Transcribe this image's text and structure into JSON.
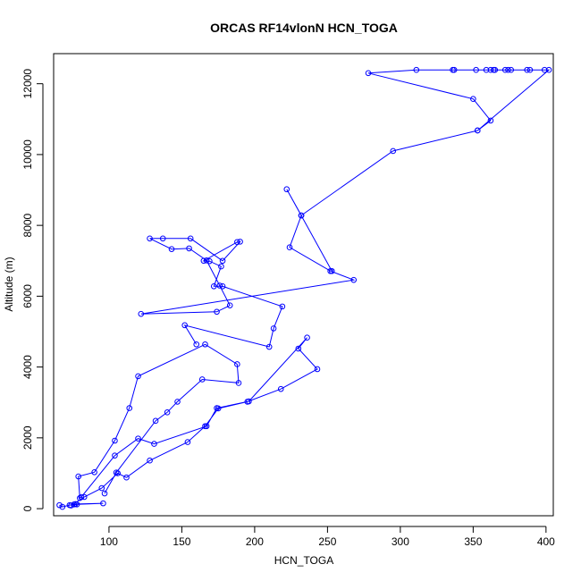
{
  "chart_data": {
    "type": "line",
    "title": "ORCAS RF14vlonN HCN_TOGA",
    "xlabel": "HCN_TOGA",
    "ylabel": "Altitude (m)",
    "xlim": [
      62,
      405
    ],
    "ylim": [
      -200,
      12850
    ],
    "xticks": [
      100,
      150,
      200,
      250,
      300,
      350,
      400
    ],
    "yticks": [
      0,
      2000,
      4000,
      6000,
      8000,
      10000,
      12000
    ],
    "grid": false,
    "legend": "none",
    "marker": "open-circle",
    "color": "#0000ff",
    "series": [
      {
        "points": [
          [
            66,
            100
          ],
          [
            68,
            50
          ],
          [
            73,
            100
          ],
          [
            76,
            120
          ],
          [
            77,
            130
          ],
          [
            96,
            150
          ],
          [
            78,
            120
          ],
          [
            74,
            90
          ],
          [
            83,
            330
          ],
          [
            95,
            580
          ],
          [
            106,
            1000
          ],
          [
            112,
            880
          ],
          [
            128,
            1360
          ],
          [
            154,
            1880
          ],
          [
            166,
            2330
          ],
          [
            175,
            2830
          ],
          [
            195,
            3020
          ],
          [
            218,
            3380
          ],
          [
            243,
            3940
          ],
          [
            230,
            4520
          ],
          [
            236,
            4830
          ],
          [
            196,
            3030
          ],
          [
            174,
            2840
          ],
          [
            167,
            2330
          ],
          [
            131,
            1830
          ],
          [
            120,
            1980
          ],
          [
            104,
            1500
          ],
          [
            81,
            330
          ],
          [
            80,
            300
          ],
          [
            79,
            910
          ],
          [
            90,
            1030
          ],
          [
            104,
            1920
          ],
          [
            114,
            2840
          ],
          [
            120,
            3740
          ],
          [
            166,
            4640
          ],
          [
            188,
            4080
          ],
          [
            189,
            3550
          ],
          [
            164,
            3650
          ],
          [
            147,
            3020
          ],
          [
            140,
            2720
          ],
          [
            132,
            2480
          ],
          [
            105,
            1020
          ],
          [
            97,
            430
          ]
        ]
      },
      {
        "points": [
          [
            160,
            4640
          ],
          [
            152,
            5180
          ],
          [
            210,
            4570
          ],
          [
            213,
            5090
          ],
          [
            219,
            5710
          ],
          [
            178,
            6280
          ],
          [
            172,
            6280
          ],
          [
            177,
            6840
          ],
          [
            169,
            6990
          ],
          [
            165,
            7000
          ],
          [
            188,
            7530
          ],
          [
            190,
            7540
          ],
          [
            178,
            7000
          ],
          [
            156,
            7630
          ],
          [
            137,
            7630
          ],
          [
            128,
            7630
          ],
          [
            143,
            7330
          ],
          [
            155,
            7350
          ],
          [
            167,
            7010
          ],
          [
            176,
            6300
          ],
          [
            183,
            5740
          ],
          [
            174,
            5560
          ],
          [
            122,
            5500
          ],
          [
            268,
            6460
          ],
          [
            252,
            6710
          ],
          [
            224,
            7380
          ],
          [
            232,
            8280
          ],
          [
            222,
            9020
          ],
          [
            253,
            6710
          ]
        ]
      },
      {
        "points": [
          [
            232,
            8280
          ],
          [
            295,
            10100
          ],
          [
            353,
            10680
          ],
          [
            362,
            10960
          ],
          [
            350,
            11570
          ],
          [
            278,
            12300
          ],
          [
            311,
            12390
          ],
          [
            336,
            12390
          ],
          [
            337,
            12390
          ],
          [
            352,
            12390
          ],
          [
            359,
            12390
          ],
          [
            362,
            12390
          ],
          [
            364,
            12390
          ],
          [
            365,
            12390
          ],
          [
            372,
            12390
          ],
          [
            374,
            12390
          ],
          [
            376,
            12390
          ],
          [
            387,
            12390
          ],
          [
            389,
            12390
          ],
          [
            399,
            12390
          ],
          [
            402,
            12390
          ],
          [
            353,
            10680
          ]
        ]
      }
    ]
  }
}
